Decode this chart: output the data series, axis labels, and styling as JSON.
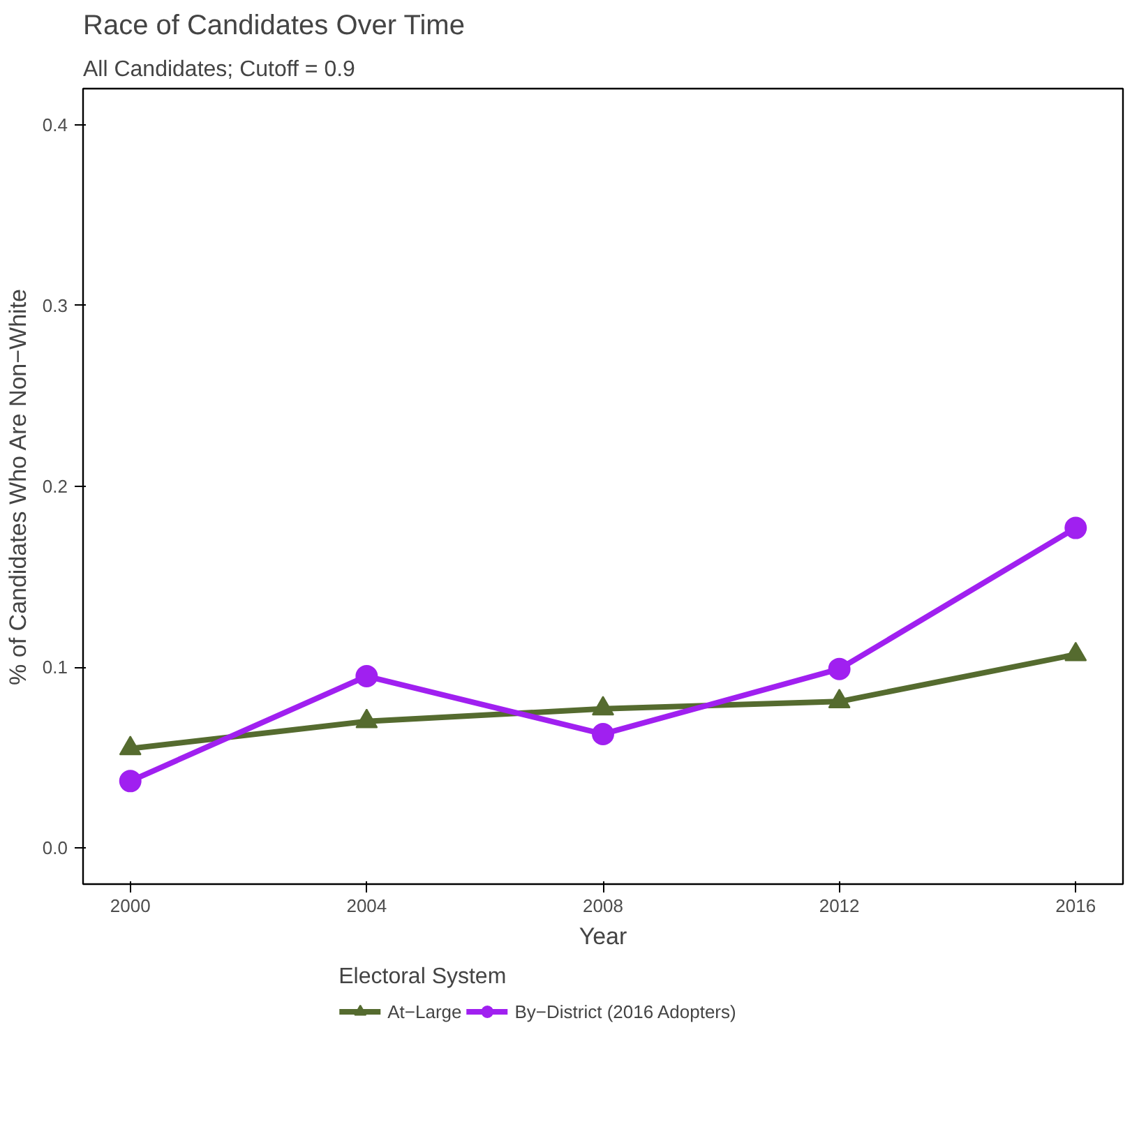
{
  "chart_data": {
    "type": "line",
    "title": "Race of Candidates Over Time",
    "subtitle": "All Candidates; Cutoff = 0.9",
    "xlabel": "Year",
    "ylabel": "% of Candidates Who Are Non−White",
    "legend_title": "Electoral System",
    "x": [
      2000,
      2004,
      2008,
      2012,
      2016
    ],
    "xlim": [
      1999.2,
      2016.8
    ],
    "xticks": [
      2000,
      2004,
      2008,
      2012,
      2016
    ],
    "ylim": [
      -0.02,
      0.42
    ],
    "yticks": [
      {
        "value": 0,
        "label": "0.0"
      },
      0.1,
      0.2,
      0.3,
      0.4
    ],
    "grid": false,
    "legend": "bottom",
    "series": [
      {
        "name": "At−Large",
        "color": "#556b2f",
        "marker": "triangle",
        "values": [
          0.055,
          0.07,
          0.077,
          0.081,
          0.107
        ]
      },
      {
        "name": "By−District (2016 Adopters)",
        "color": "#a020f0",
        "marker": "circle",
        "values": [
          0.037,
          0.095,
          0.063,
          0.099,
          0.177
        ]
      }
    ]
  }
}
